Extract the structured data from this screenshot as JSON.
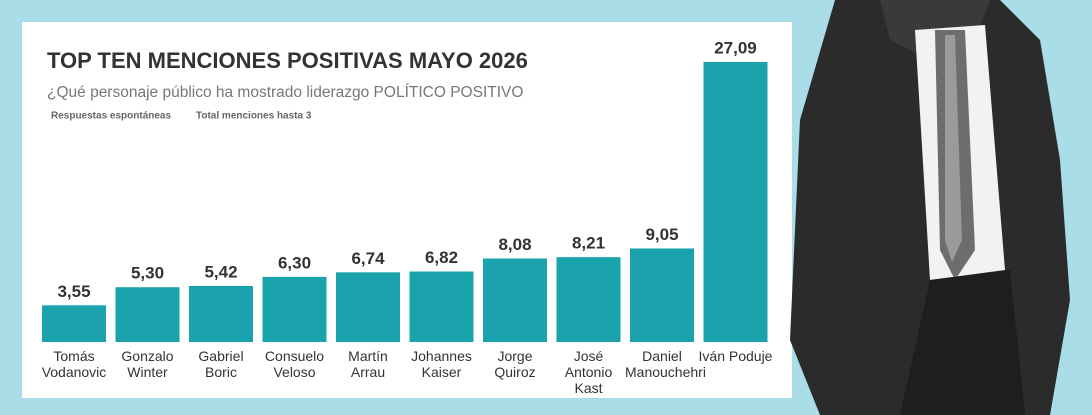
{
  "chart_data": {
    "type": "bar",
    "title": "TOP TEN MENCIONES POSITIVAS MAYO 2026",
    "subtitle": "¿Qué personaje público ha mostrado liderazgo POLÍTICO POSITIVO",
    "notes": [
      "Respuestas espontáneas",
      "Total menciones hasta 3"
    ],
    "categories": [
      "Tomás Vodanovic",
      "Gonzalo Winter",
      "Gabriel Boric",
      "Consuelo Veloso",
      "Martín Arrau",
      "Johannes Kaiser",
      "Jorge Quiroz",
      "José Antonio Kast",
      "Daniel Manouchehri",
      "Iván Poduje"
    ],
    "values": [
      3.55,
      5.3,
      5.42,
      6.3,
      6.74,
      6.82,
      8.08,
      8.21,
      9.05,
      27.09
    ],
    "value_labels": [
      "3,55",
      "5,30",
      "5,42",
      "6,30",
      "6,74",
      "6,82",
      "8,08",
      "8,21",
      "9,05",
      "27,09"
    ],
    "color": "#1ba3ad"
  }
}
